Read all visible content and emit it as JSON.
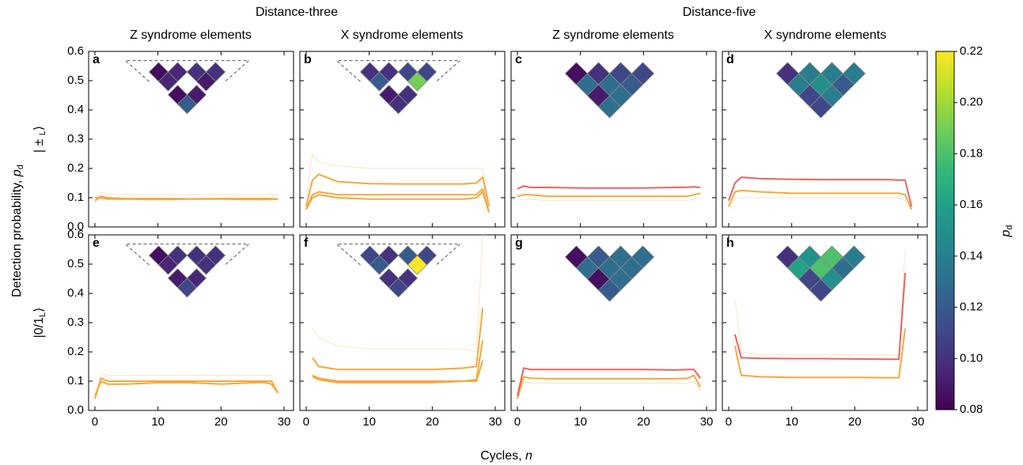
{
  "header": {
    "groups": [
      "Distance-three",
      "Distance-five"
    ],
    "columns": [
      "Z syndrome elements",
      "X syndrome elements",
      "Z syndrome elements",
      "X syndrome elements"
    ]
  },
  "y_label": {
    "text": "Detection probability, ",
    "var": "p",
    "sub": "d"
  },
  "row_labels": [
    {
      "text": "| ± ",
      "sub": "L",
      "close": "⟩"
    },
    {
      "text": "|0/1",
      "sub": "L",
      "close": "⟩"
    }
  ],
  "x_label": {
    "text": "Cycles, ",
    "var": "n"
  },
  "chart_data": [
    {
      "type": "line",
      "label": "a",
      "x": [
        0,
        1,
        2,
        5,
        10,
        15,
        20,
        25,
        27,
        28,
        29
      ],
      "xlim": [
        -1,
        31.5
      ],
      "xticks": [
        0,
        10,
        20,
        30
      ],
      "xtick_labels": false,
      "ylim": [
        0,
        0.6
      ],
      "yticks": [
        {
          "value": 0,
          "label": "0.0"
        },
        0.1,
        0.2,
        0.3,
        0.4,
        0.5,
        0.6
      ],
      "ytick_labels": true,
      "series": [
        {
          "color": "#fde3c4",
          "values": [
            0.08,
            0.12,
            0.11,
            0.11,
            0.11,
            0.11,
            0.11,
            0.11,
            0.11,
            0.11,
            0.11
          ]
        },
        {
          "color": "#f7a83e",
          "values": [
            0.1,
            0.1,
            0.095,
            0.095,
            0.094,
            0.095,
            0.095,
            0.094,
            0.094,
            0.095,
            0.094
          ]
        },
        {
          "color": "#f7a83e",
          "values": [
            0.09,
            0.105,
            0.1,
            0.097,
            0.097,
            0.096,
            0.097,
            0.097,
            0.097,
            0.097,
            0.095
          ]
        }
      ],
      "inset_values": [
        0.085,
        0.095,
        0.1,
        0.1,
        0.095,
        0.09,
        0.085,
        0.09,
        0.12
      ]
    },
    {
      "type": "line",
      "label": "b",
      "x": [
        0,
        1,
        2,
        5,
        10,
        15,
        20,
        25,
        27,
        28,
        29
      ],
      "xlim": [
        -1,
        31.5
      ],
      "xticks": [
        0,
        10,
        20,
        30
      ],
      "xtick_labels": false,
      "ylim": [
        0,
        0.6
      ],
      "yticks": [
        {
          "value": 0,
          "label": "0.0"
        },
        0.1,
        0.2,
        0.3,
        0.4,
        0.5,
        0.6
      ],
      "ytick_labels": false,
      "series": [
        {
          "color": "#fde3c4",
          "values": [
            0.1,
            0.25,
            0.22,
            0.21,
            0.2,
            0.2,
            0.2,
            0.2,
            0.2,
            0.2,
            0.08
          ]
        },
        {
          "color": "#f7a83e",
          "values": [
            0.07,
            0.16,
            0.18,
            0.155,
            0.148,
            0.147,
            0.147,
            0.147,
            0.15,
            0.17,
            0.07
          ]
        },
        {
          "color": "#f7a83e",
          "values": [
            0.06,
            0.11,
            0.12,
            0.11,
            0.11,
            0.11,
            0.11,
            0.11,
            0.11,
            0.13,
            0.05
          ]
        },
        {
          "color": "#f7a83e",
          "values": [
            0.06,
            0.1,
            0.11,
            0.1,
            0.095,
            0.095,
            0.095,
            0.095,
            0.1,
            0.12,
            0.05
          ]
        }
      ],
      "inset_values": [
        0.1,
        0.1,
        0.11,
        0.11,
        0.12,
        0.19,
        0.09,
        0.1,
        0.1
      ]
    },
    {
      "type": "line",
      "label": "c",
      "x": [
        0,
        1,
        2,
        5,
        10,
        15,
        20,
        25,
        27,
        28,
        29
      ],
      "xlim": [
        -1,
        31.5
      ],
      "xticks": [
        0,
        10,
        20,
        30
      ],
      "xtick_labels": false,
      "ylim": [
        0,
        0.6
      ],
      "yticks": [
        {
          "value": 0,
          "label": "0.0"
        },
        0.1,
        0.2,
        0.3,
        0.4,
        0.5,
        0.6
      ],
      "ytick_labels": false,
      "series": [
        {
          "color": "#fde3c4",
          "values": [
            0.09,
            0.095,
            0.095,
            0.09,
            0.09,
            0.09,
            0.09,
            0.09,
            0.09,
            0.095,
            0.1
          ]
        },
        {
          "color": "#f7a83e",
          "values": [
            0.105,
            0.11,
            0.11,
            0.105,
            0.105,
            0.105,
            0.105,
            0.105,
            0.105,
            0.11,
            0.115
          ]
        },
        {
          "color": "#e8655f",
          "values": [
            0.13,
            0.14,
            0.135,
            0.135,
            0.133,
            0.133,
            0.133,
            0.135,
            0.136,
            0.137,
            0.135
          ]
        }
      ],
      "inset_values": [
        0.085,
        0.1,
        0.11,
        0.11,
        0.13,
        0.13,
        0.12,
        0.09,
        0.13,
        0.13
      ]
    },
    {
      "type": "line",
      "label": "d",
      "x": [
        0,
        1,
        2,
        5,
        10,
        15,
        20,
        25,
        27,
        28,
        29
      ],
      "xlim": [
        -1,
        31.5
      ],
      "xticks": [
        0,
        10,
        20,
        30
      ],
      "xtick_labels": false,
      "ylim": [
        0,
        0.6
      ],
      "yticks": [
        {
          "value": 0,
          "label": "0.0"
        },
        0.1,
        0.2,
        0.3,
        0.4,
        0.5,
        0.6
      ],
      "ytick_labels": false,
      "series": [
        {
          "color": "#fde3c4",
          "values": [
            0.06,
            0.1,
            0.1,
            0.1,
            0.1,
            0.1,
            0.1,
            0.1,
            0.1,
            0.09,
            0.06
          ]
        },
        {
          "color": "#f7a83e",
          "values": [
            0.07,
            0.12,
            0.125,
            0.12,
            0.115,
            0.115,
            0.115,
            0.115,
            0.115,
            0.11,
            0.06
          ]
        },
        {
          "color": "#e8655f",
          "values": [
            0.09,
            0.15,
            0.17,
            0.165,
            0.163,
            0.162,
            0.162,
            0.162,
            0.16,
            0.16,
            0.07
          ]
        }
      ],
      "inset_values": [
        0.1,
        0.14,
        0.14,
        0.14,
        0.14,
        0.15,
        0.12,
        0.11,
        0.14,
        0.11
      ]
    },
    {
      "type": "line",
      "label": "e",
      "x": [
        0,
        1,
        2,
        5,
        10,
        15,
        20,
        25,
        27,
        28,
        29
      ],
      "xlim": [
        -1,
        31.5
      ],
      "xticks": [
        0,
        10,
        20,
        30
      ],
      "xtick_labels": true,
      "ylim": [
        0,
        0.6
      ],
      "yticks": [
        {
          "value": 0,
          "label": "0.0"
        },
        0.1,
        0.2,
        0.3,
        0.4,
        0.5,
        0.6
      ],
      "ytick_labels": true,
      "series": [
        {
          "color": "#fde3c4",
          "values": [
            0.05,
            0.13,
            0.12,
            0.12,
            0.12,
            0.12,
            0.12,
            0.12,
            0.12,
            0.12,
            0.07
          ]
        },
        {
          "color": "#f7a83e",
          "values": [
            0.05,
            0.1,
            0.09,
            0.09,
            0.095,
            0.095,
            0.09,
            0.095,
            0.095,
            0.09,
            0.06
          ]
        },
        {
          "color": "#f7a83e",
          "values": [
            0.04,
            0.11,
            0.1,
            0.1,
            0.1,
            0.1,
            0.1,
            0.1,
            0.1,
            0.1,
            0.06
          ]
        }
      ],
      "inset_values": [
        0.085,
        0.1,
        0.1,
        0.1,
        0.095,
        0.1,
        0.09,
        0.095,
        0.11
      ]
    },
    {
      "type": "line",
      "label": "f",
      "x": [
        0,
        1,
        2,
        5,
        10,
        15,
        20,
        25,
        27,
        28,
        29
      ],
      "xlim": [
        -1,
        31.5
      ],
      "xticks": [
        0,
        10,
        20,
        30
      ],
      "xtick_labels": true,
      "ylim": [
        0,
        0.6
      ],
      "yticks": [
        {
          "value": 0,
          "label": "0.0"
        },
        0.1,
        0.2,
        0.3,
        0.4,
        0.5,
        0.6
      ],
      "ytick_labels": false,
      "series": [
        {
          "color": "#fde3c4",
          "values": [
            null,
            0.28,
            0.25,
            0.22,
            0.21,
            0.21,
            0.21,
            0.21,
            0.2,
            0.6,
            null
          ]
        },
        {
          "color": "#f7a83e",
          "values": [
            null,
            0.18,
            0.15,
            0.14,
            0.14,
            0.14,
            0.14,
            0.145,
            0.15,
            0.35,
            null
          ]
        },
        {
          "color": "#f7a83e",
          "values": [
            null,
            0.12,
            0.11,
            0.1,
            0.1,
            0.1,
            0.1,
            0.1,
            0.105,
            0.24,
            null
          ]
        },
        {
          "color": "#f7a83e",
          "values": [
            null,
            0.115,
            0.105,
            0.095,
            0.095,
            0.095,
            0.095,
            0.1,
            0.1,
            0.17,
            null
          ]
        }
      ],
      "inset_values": [
        0.11,
        0.1,
        0.12,
        0.11,
        0.12,
        0.22,
        0.1,
        0.1,
        0.11
      ]
    },
    {
      "type": "line",
      "label": "g",
      "x": [
        0,
        1,
        2,
        5,
        10,
        15,
        20,
        25,
        27,
        28,
        29
      ],
      "xlim": [
        -1,
        31.5
      ],
      "xticks": [
        0,
        10,
        20,
        30
      ],
      "xtick_labels": true,
      "ylim": [
        0,
        0.6
      ],
      "yticks": [
        {
          "value": 0,
          "label": "0.0"
        },
        0.1,
        0.2,
        0.3,
        0.4,
        0.5,
        0.6
      ],
      "ytick_labels": false,
      "series": [
        {
          "color": "#fde3c4",
          "values": [
            0.04,
            0.1,
            0.095,
            0.093,
            0.093,
            0.093,
            0.093,
            0.093,
            0.093,
            0.1,
            0.07
          ]
        },
        {
          "color": "#f7a83e",
          "values": [
            0.04,
            0.115,
            0.11,
            0.108,
            0.108,
            0.108,
            0.108,
            0.108,
            0.11,
            0.12,
            0.08
          ]
        },
        {
          "color": "#e8655f",
          "values": [
            0.05,
            0.145,
            0.14,
            0.14,
            0.14,
            0.14,
            0.14,
            0.138,
            0.14,
            0.14,
            0.11
          ]
        }
      ],
      "inset_values": [
        0.085,
        0.12,
        0.13,
        0.13,
        0.13,
        0.13,
        0.13,
        0.085,
        0.13,
        0.12
      ]
    },
    {
      "type": "line",
      "label": "h",
      "x": [
        0,
        1,
        2,
        5,
        10,
        15,
        20,
        25,
        27,
        28,
        29
      ],
      "xlim": [
        -1,
        31.5
      ],
      "xticks": [
        0,
        10,
        20,
        30
      ],
      "xtick_labels": true,
      "ylim": [
        0,
        0.6
      ],
      "yticks": [
        {
          "value": 0,
          "label": "0.0"
        },
        0.1,
        0.2,
        0.3,
        0.4,
        0.5,
        0.6
      ],
      "ytick_labels": false,
      "series": [
        {
          "color": "#fde3c4",
          "values": [
            null,
            0.38,
            0.2,
            0.19,
            0.19,
            0.19,
            0.19,
            0.19,
            0.19,
            0.55,
            null
          ]
        },
        {
          "color": "#f7a83e",
          "values": [
            null,
            0.22,
            0.12,
            0.115,
            0.113,
            0.113,
            0.113,
            0.112,
            0.112,
            0.28,
            null
          ]
        },
        {
          "color": "#e8655f",
          "values": [
            null,
            0.26,
            0.18,
            0.178,
            0.177,
            0.177,
            0.176,
            0.175,
            0.175,
            0.47,
            null
          ]
        }
      ],
      "inset_values": [
        0.1,
        0.15,
        0.18,
        0.14,
        0.16,
        0.18,
        0.13,
        0.11,
        0.15,
        0.11
      ]
    },
    {
      "type": "colorbar",
      "colormap": "viridis",
      "label": {
        "var": "p",
        "sub": "d"
      },
      "ylim": [
        0.08,
        0.22
      ],
      "yticks": [
        0.08,
        {
          "value": 0.1,
          "label": "0.10"
        },
        0.12,
        0.14,
        0.16,
        0.18,
        {
          "value": 0.2,
          "label": "0.20"
        },
        0.22
      ]
    }
  ]
}
